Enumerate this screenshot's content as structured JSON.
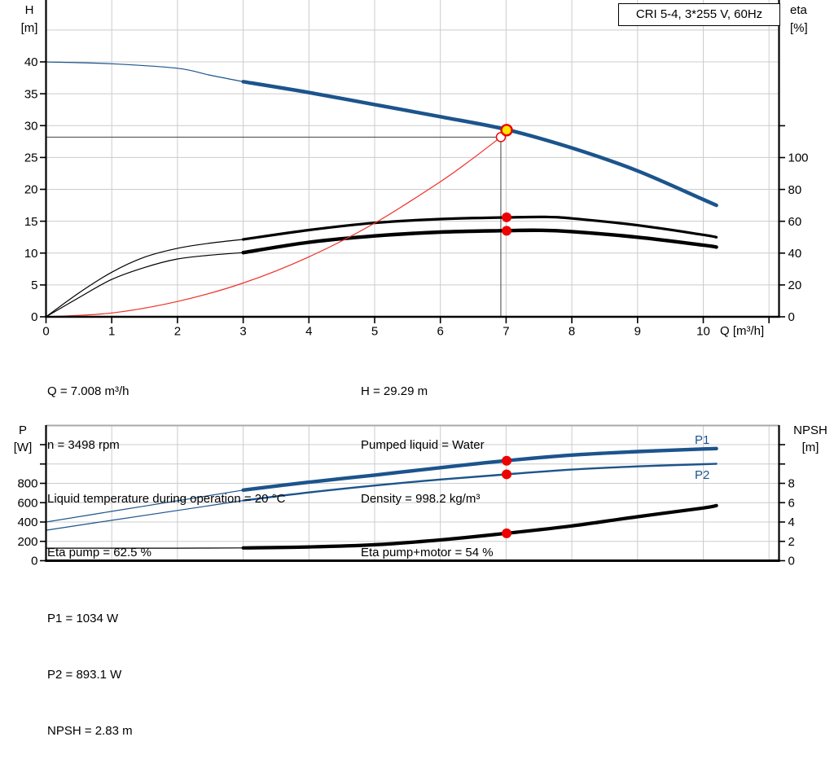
{
  "title_box": {
    "text": "CRI 5-4, 3*255 V, 60Hz"
  },
  "colors": {
    "curve_blue": "#1c548c",
    "curve_black": "#000000",
    "system_red": "#f03028",
    "marker_red": "#ec0000",
    "duty_yellow": "#ffe400",
    "grid": "#cccccc",
    "axis": "#000000",
    "guide": "#404040",
    "label_blue": "#1c548c"
  },
  "info_top_left": [
    "Q = 7.008 m³/h",
    "n = 3498 rpm",
    "Liquid temperature during operation = 20 °C",
    "Eta pump = 62.5 %"
  ],
  "info_top_right": [
    "H = 29.29 m",
    "Pumped liquid = Water",
    "Density = 998.2 kg/m³",
    "Eta pump+motor = 54 %"
  ],
  "info_bottom": [
    "P1 = 1034 W",
    "P2 = 893.1 W",
    "NPSH = 2.83 m"
  ],
  "chart_data": [
    {
      "type": "line",
      "title": "CRI 5-4, 3*255 V, 60Hz",
      "x_axis": {
        "label": "Q [m³/h]",
        "ticks": [
          0,
          1,
          2,
          3,
          4,
          5,
          6,
          7,
          8,
          9,
          10
        ],
        "unlabeled_ticks": [
          11
        ],
        "gridlines": [
          1,
          2,
          3,
          4,
          5,
          6,
          7,
          8,
          9,
          10,
          11
        ],
        "range": [
          0,
          11.15
        ]
      },
      "y_left": {
        "label_lines": [
          "H",
          "[m]"
        ],
        "ticks": [
          0,
          5,
          10,
          15,
          20,
          25,
          30,
          35,
          40
        ],
        "unlabeled_ticks": [],
        "gridlines": [
          5,
          10,
          15,
          20,
          25,
          30,
          35,
          40,
          45
        ],
        "range": [
          0,
          49.7
        ]
      },
      "y_right": {
        "label_lines": [
          "eta",
          "[%]"
        ],
        "ticks": [
          0,
          20,
          40,
          60,
          80,
          100
        ],
        "unlabeled_ticks": [
          120
        ],
        "range": [
          0,
          199
        ]
      },
      "series": [
        {
          "name": "head-curve",
          "axis": "left",
          "color": "curve_blue",
          "thin": [
            [
              0,
              40
            ],
            [
              1,
              39.7
            ],
            [
              2,
              39.0
            ],
            [
              2.5,
              37.9
            ],
            [
              3,
              36.9
            ]
          ],
          "thick": [
            [
              3,
              36.9
            ],
            [
              4,
              35.2
            ],
            [
              5,
              33.3
            ],
            [
              6,
              31.4
            ],
            [
              7,
              29.4
            ],
            [
              8,
              26.5
            ],
            [
              9,
              22.9
            ],
            [
              10,
              18.4
            ],
            [
              10.2,
              17.5
            ]
          ]
        },
        {
          "name": "eta-pump-curve",
          "axis": "right",
          "color": "curve_black",
          "thin": [
            [
              0,
              0
            ],
            [
              0.5,
              15
            ],
            [
              1,
              28
            ],
            [
              1.5,
              37.5
            ],
            [
              2,
              43
            ],
            [
              2.5,
              46.3
            ],
            [
              3,
              48.6
            ]
          ],
          "thick": [
            [
              3,
              48.6
            ],
            [
              4,
              54.5
            ],
            [
              5,
              59
            ],
            [
              6,
              61.4
            ],
            [
              7,
              62.4
            ],
            [
              7.6,
              62.7
            ],
            [
              8,
              61.8
            ],
            [
              9,
              57.5
            ],
            [
              10,
              51.5
            ],
            [
              10.2,
              50
            ]
          ]
        },
        {
          "name": "eta-pump-motor-curve",
          "axis": "right",
          "color": "curve_black",
          "thin": [
            [
              0,
              0
            ],
            [
              0.5,
              12
            ],
            [
              1,
              23.5
            ],
            [
              1.5,
              31
            ],
            [
              2,
              36.3
            ],
            [
              2.5,
              38.7
            ],
            [
              3,
              40.3
            ]
          ],
          "thick": [
            [
              3,
              40.3
            ],
            [
              4,
              46.8
            ],
            [
              5,
              50.8
            ],
            [
              6,
              53.2
            ],
            [
              7,
              54.1
            ],
            [
              7.5,
              54.3
            ],
            [
              8,
              53.5
            ],
            [
              9,
              50
            ],
            [
              10,
              45
            ],
            [
              10.2,
              43.8
            ]
          ]
        },
        {
          "name": "system-curve",
          "axis": "left",
          "color": "system_red",
          "thin": [
            [
              0,
              0
            ],
            [
              1,
              0.6
            ],
            [
              2,
              2.4
            ],
            [
              3,
              5.3
            ],
            [
              4,
              9.4
            ],
            [
              5,
              14.7
            ],
            [
              6,
              21.2
            ],
            [
              6.5,
              24.9
            ],
            [
              6.92,
              28.2
            ]
          ],
          "thick": []
        }
      ],
      "markers": [
        {
          "name": "requested-duty-point",
          "x": 6.92,
          "y": 28.2,
          "axis": "left",
          "style": "open"
        },
        {
          "name": "eta-pump-point",
          "x": 7.008,
          "y": 62.5,
          "axis": "right",
          "style": "red"
        },
        {
          "name": "eta-pump-motor-point",
          "x": 7.008,
          "y": 54,
          "axis": "right",
          "style": "red"
        },
        {
          "name": "duty-point",
          "x": 7.008,
          "y": 29.29,
          "axis": "left",
          "style": "yellow"
        }
      ],
      "guides": {
        "q": 6.92,
        "h": 28.2
      }
    },
    {
      "type": "line",
      "x_axis": {
        "label": "",
        "ticks": [],
        "unlabeled_ticks": [],
        "gridlines": [
          1,
          2,
          3,
          4,
          5,
          6,
          7,
          8,
          9,
          10,
          11
        ],
        "range": [
          0,
          11.15
        ]
      },
      "y_left": {
        "label_lines": [
          "P",
          "[W]"
        ],
        "ticks": [
          0,
          200,
          400,
          600,
          800
        ],
        "unlabeled_ticks": [
          1000,
          1200
        ],
        "gridlines": [
          200,
          400,
          600,
          800,
          1000,
          1200,
          1400
        ],
        "range": [
          0,
          1400
        ]
      },
      "y_right": {
        "label_lines": [
          "NPSH",
          "[m]"
        ],
        "ticks": [
          0,
          2,
          4,
          6,
          8
        ],
        "unlabeled_ticks": [
          10,
          12
        ],
        "range": [
          0,
          14
        ]
      },
      "series": [
        {
          "name": "p1-curve",
          "label": "P1",
          "axis": "left",
          "color": "curve_blue",
          "thin": [
            [
              0,
              400
            ],
            [
              1,
              510
            ],
            [
              2,
              620
            ],
            [
              3,
              730
            ]
          ],
          "thick": [
            [
              3,
              730
            ],
            [
              4,
              812
            ],
            [
              5,
              885
            ],
            [
              6,
              962
            ],
            [
              7,
              1034
            ],
            [
              8,
              1092
            ],
            [
              9,
              1128
            ],
            [
              10,
              1155
            ],
            [
              10.2,
              1160
            ]
          ]
        },
        {
          "name": "p2-curve",
          "label": "P2",
          "axis": "left",
          "color": "curve_blue",
          "thin": [
            [
              0,
              315
            ],
            [
              1,
              418
            ],
            [
              2,
              520
            ],
            [
              3,
              622
            ]
          ],
          "thick": [
            [
              3,
              622
            ],
            [
              4,
              706
            ],
            [
              5,
              777
            ],
            [
              6,
              840
            ],
            [
              7,
              893
            ],
            [
              8,
              942
            ],
            [
              9,
              975
            ],
            [
              10,
              998
            ],
            [
              10.2,
              1002
            ]
          ]
        },
        {
          "name": "npsh-curve",
          "axis": "right",
          "color": "curve_black",
          "thin": [
            [
              0,
              1.3
            ],
            [
              1,
              1.3
            ],
            [
              2,
              1.3
            ],
            [
              3,
              1.32
            ]
          ],
          "thick": [
            [
              3,
              1.32
            ],
            [
              4,
              1.42
            ],
            [
              5,
              1.65
            ],
            [
              6,
              2.15
            ],
            [
              7,
              2.83
            ],
            [
              8,
              3.6
            ],
            [
              9,
              4.55
            ],
            [
              10,
              5.45
            ],
            [
              10.2,
              5.7
            ]
          ]
        }
      ],
      "markers": [
        {
          "name": "p1-point",
          "x": 7.008,
          "y": 1034,
          "axis": "left",
          "style": "red"
        },
        {
          "name": "p2-point",
          "x": 7.008,
          "y": 893.1,
          "axis": "left",
          "style": "red"
        },
        {
          "name": "npsh-point",
          "x": 7.008,
          "y": 2.83,
          "axis": "right",
          "style": "red"
        }
      ]
    }
  ]
}
